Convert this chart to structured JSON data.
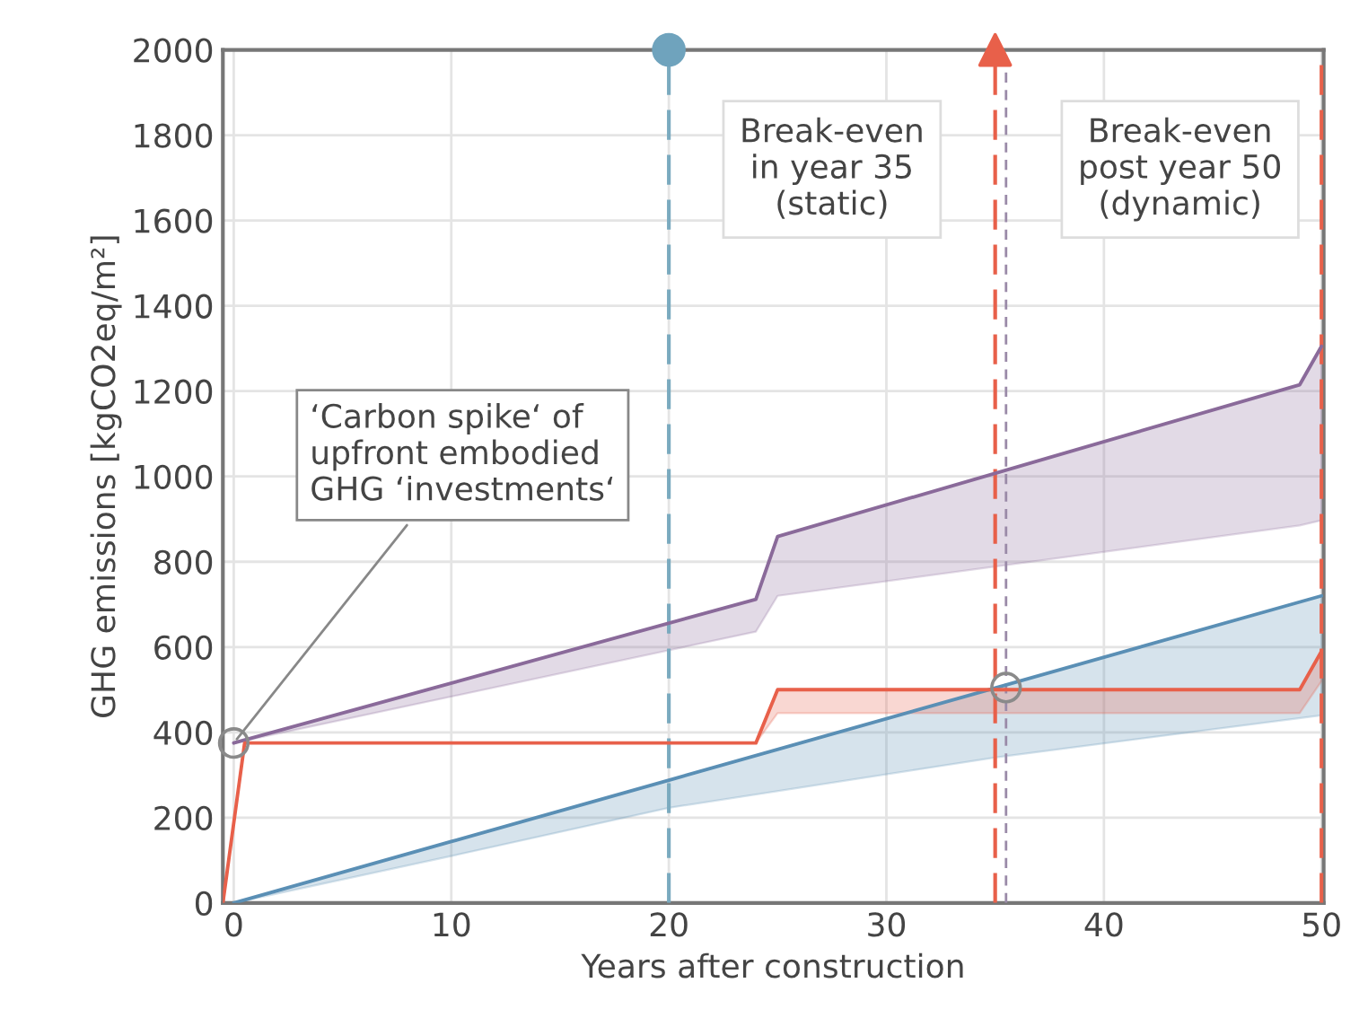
{
  "chart_data": {
    "type": "line",
    "xlabel": "Years after construction",
    "ylabel": "GHG emissions [kgCO2eq/m²]",
    "xlim": [
      -0.5,
      50.1
    ],
    "xticks": [
      0,
      10,
      20,
      30,
      40,
      50
    ],
    "ylim": [
      0,
      2000
    ],
    "yticks": [
      0,
      200,
      400,
      600,
      800,
      1000,
      1200,
      1400,
      1600,
      1800,
      2000
    ],
    "grid": true,
    "series": [
      {
        "color": "#8a6a9a",
        "x": [
          0,
          24,
          25,
          49,
          50
        ],
        "values": [
          375,
          712,
          859,
          1215,
          1305
        ],
        "lower": [
          375,
          636,
          720,
          885,
          897
        ],
        "upper": [
          375,
          712,
          859,
          1215,
          1305
        ]
      },
      {
        "color": "#5a8fb5",
        "x": [
          0,
          10,
          20,
          35,
          50
        ],
        "values": [
          0,
          144,
          288,
          504,
          720
        ],
        "lower": [
          0,
          110,
          223,
          341,
          440
        ],
        "upper": [
          0,
          144,
          288,
          504,
          720
        ]
      },
      {
        "color": "#e8604a",
        "x": [
          -0.5,
          0.5,
          24,
          25,
          49,
          50
        ],
        "values": [
          0,
          375,
          375,
          500,
          500,
          590
        ],
        "lower": [
          0,
          375,
          375,
          445,
          445,
          520
        ],
        "upper": [
          0,
          375,
          375,
          500,
          500,
          590
        ]
      },
      {
        "type": "scatter",
        "marker": "circle",
        "color": "#8a8a8a",
        "x": [
          0,
          35.5
        ],
        "values": [
          375,
          505
        ]
      },
      {
        "type": "scatter",
        "marker": "circle",
        "color": "#6fa3bd",
        "x": [
          20
        ],
        "values": [
          2000
        ]
      },
      {
        "type": "scatter",
        "marker": "triangle",
        "color": "#e8604a",
        "x": [
          35
        ],
        "values": [
          2000
        ]
      }
    ],
    "ref_lines": [
      {
        "axis": "x",
        "value": 20,
        "color": "#7aaabf",
        "line_style": "dashed"
      },
      {
        "axis": "x",
        "value": 35,
        "color": "#e8604a",
        "line_style": "dashed"
      },
      {
        "axis": "x",
        "value": 35.5,
        "color": "#9a8aa8",
        "line_style": "dotted"
      },
      {
        "axis": "x",
        "value": 50,
        "color": "#e8604a",
        "line_style": "dashed"
      }
    ],
    "annotations": [
      {
        "text": "‘Carbon spike‘ of\nupfront embodied\nGHG ‘investments‘",
        "x": 0,
        "y": 375
      },
      "Break-even\nin year 35\n(static)",
      "Break-even\npost year 50\n(dynamic)"
    ]
  }
}
